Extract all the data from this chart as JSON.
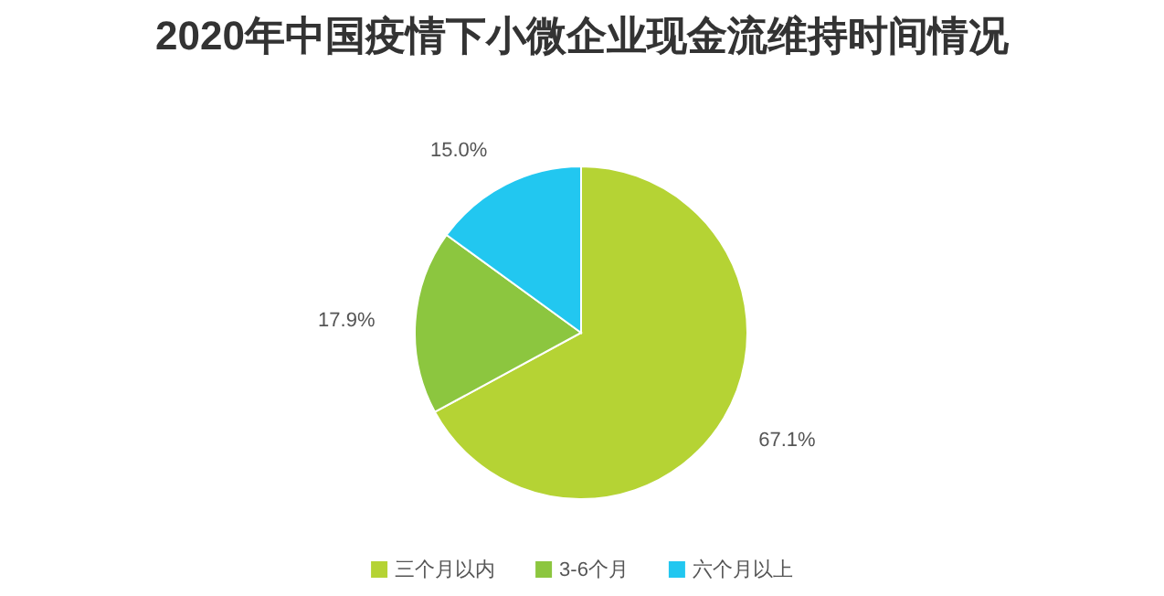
{
  "chart_data": {
    "type": "pie",
    "title": "2020年中国疫情下小微企业现金流维持时间情况",
    "categories": [
      "三个月以内",
      "3-6个月",
      "六个月以上"
    ],
    "values": [
      67.1,
      17.9,
      15.0
    ],
    "value_labels": [
      "67.1%",
      "17.9%",
      "15.0%"
    ],
    "colors": [
      "#b5d334",
      "#8cc63f",
      "#22c7f0"
    ],
    "legend": "bottom"
  }
}
